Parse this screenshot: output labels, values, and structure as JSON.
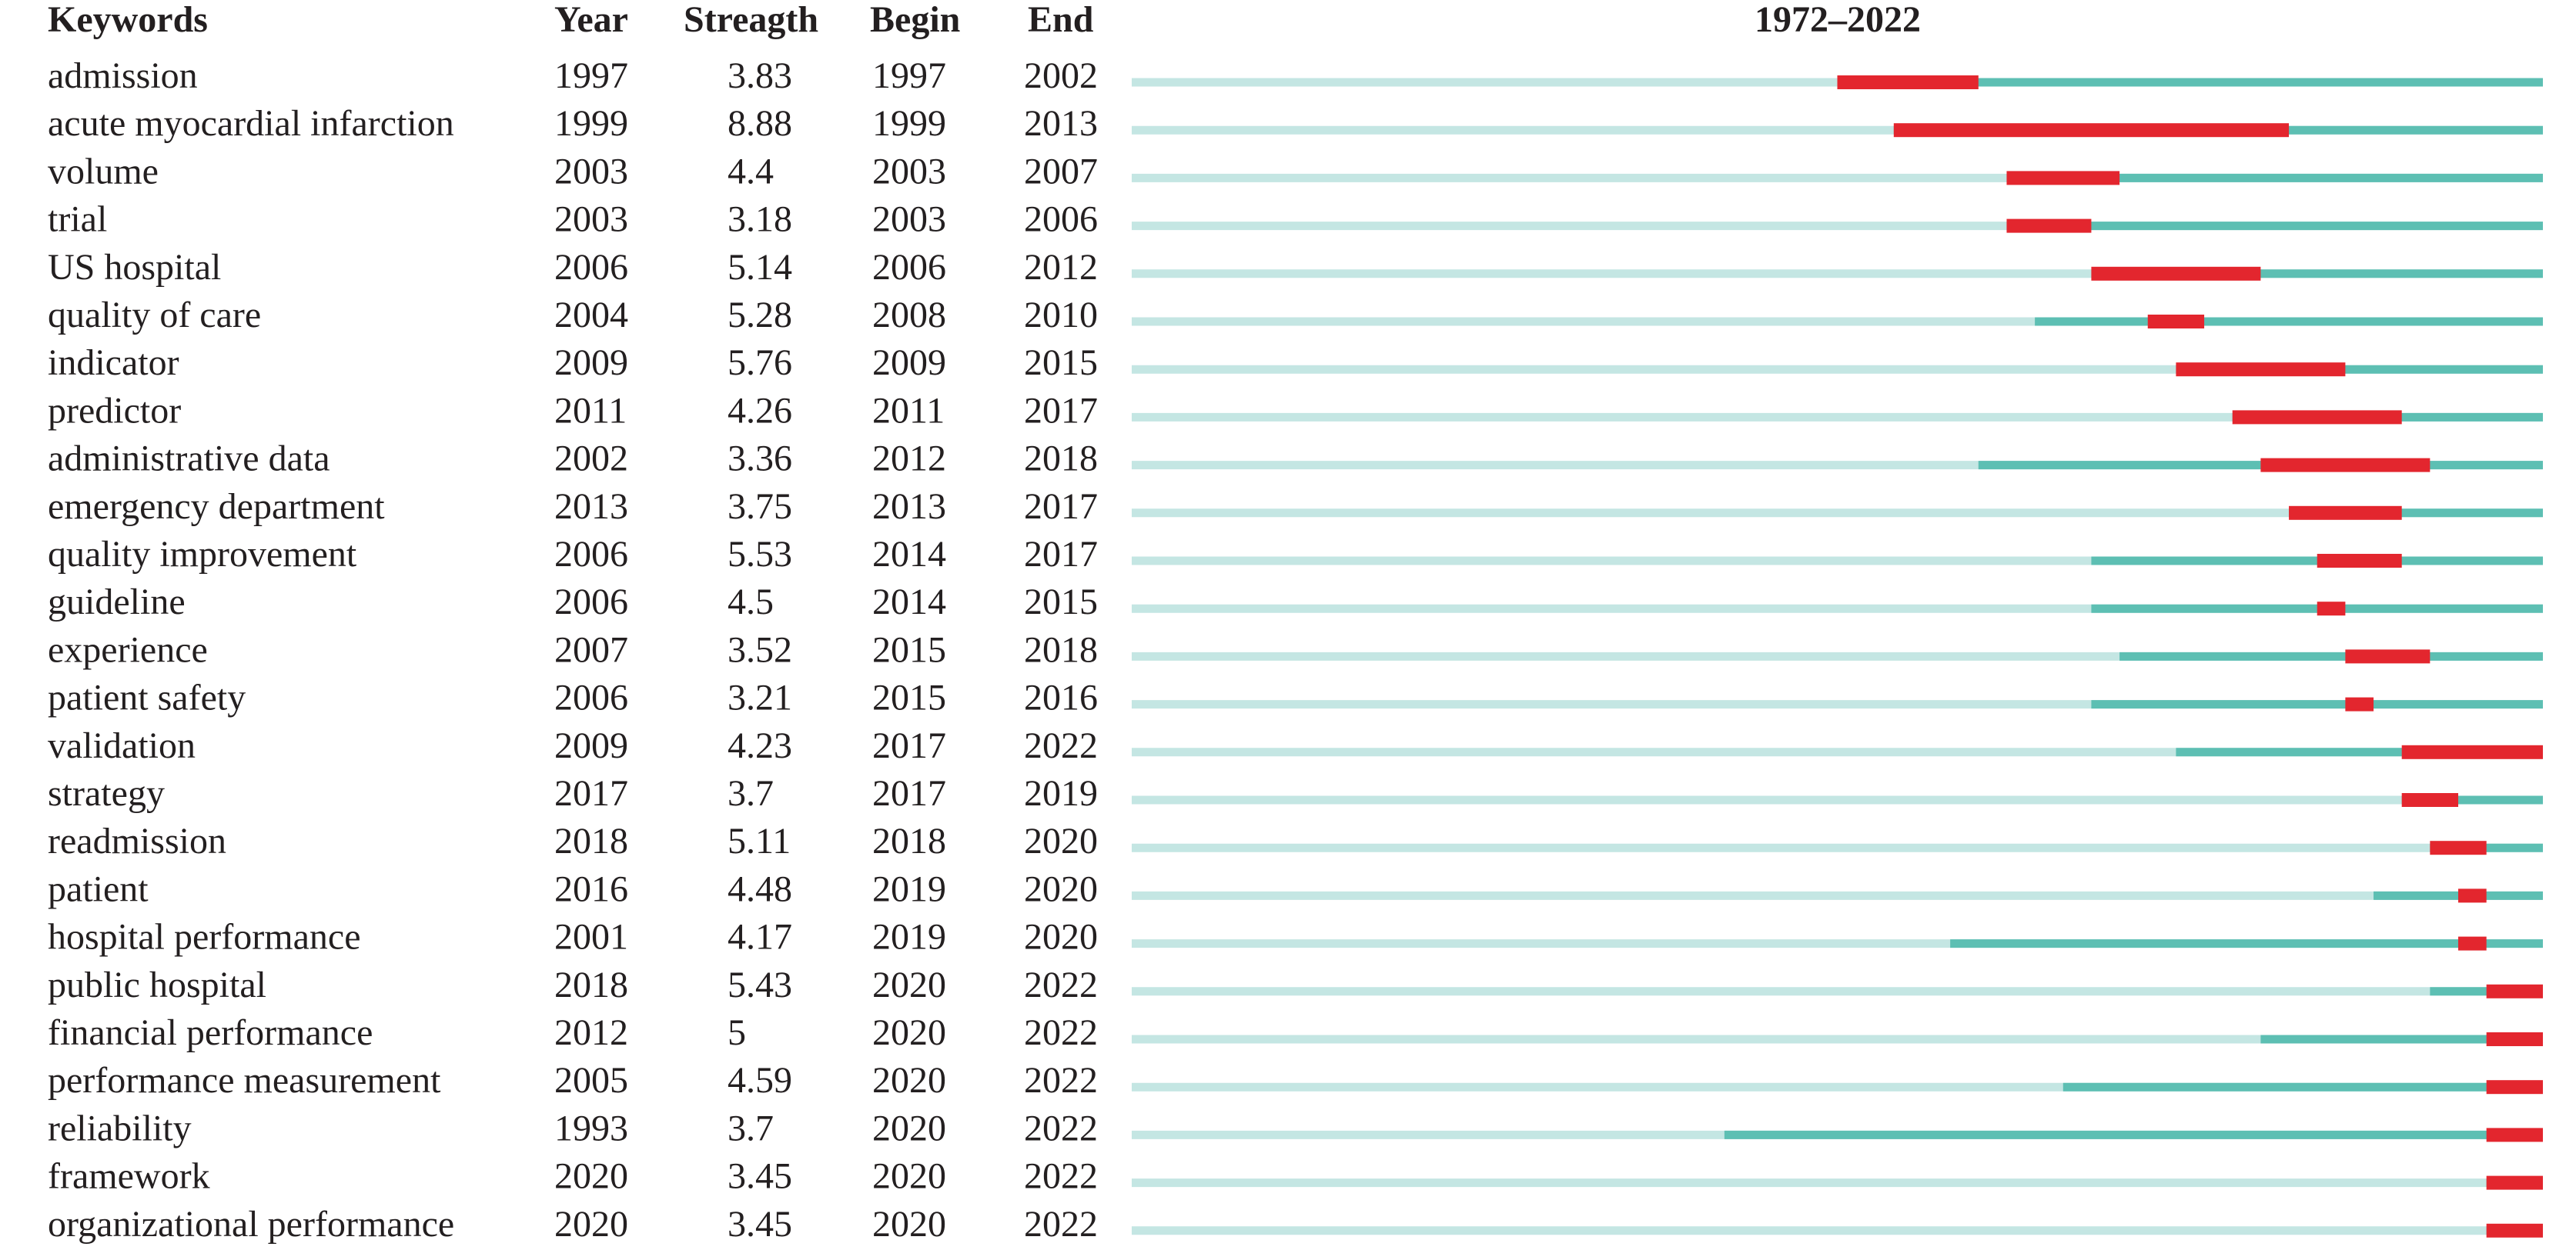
{
  "table": {
    "columns": [
      "Keywords",
      "Year",
      "Streagth",
      "Begin",
      "End"
    ],
    "period_label": "1972–2022",
    "xlim": [
      1972,
      2022
    ],
    "rows": [
      {
        "keyword": "admission",
        "year": 1997,
        "strength": 3.83,
        "begin": 1997,
        "end": 2002
      },
      {
        "keyword": "acute myocardial infarction",
        "year": 1999,
        "strength": 8.88,
        "begin": 1999,
        "end": 2013
      },
      {
        "keyword": "volume",
        "year": 2003,
        "strength": 4.4,
        "begin": 2003,
        "end": 2007
      },
      {
        "keyword": "trial",
        "year": 2003,
        "strength": 3.18,
        "begin": 2003,
        "end": 2006
      },
      {
        "keyword": "US hospital",
        "year": 2006,
        "strength": 5.14,
        "begin": 2006,
        "end": 2012
      },
      {
        "keyword": "quality of care",
        "year": 2004,
        "strength": 5.28,
        "begin": 2008,
        "end": 2010
      },
      {
        "keyword": "indicator",
        "year": 2009,
        "strength": 5.76,
        "begin": 2009,
        "end": 2015
      },
      {
        "keyword": "predictor",
        "year": 2011,
        "strength": 4.26,
        "begin": 2011,
        "end": 2017
      },
      {
        "keyword": "administrative data",
        "year": 2002,
        "strength": 3.36,
        "begin": 2012,
        "end": 2018
      },
      {
        "keyword": "emergency department",
        "year": 2013,
        "strength": 3.75,
        "begin": 2013,
        "end": 2017
      },
      {
        "keyword": "quality improvement",
        "year": 2006,
        "strength": 5.53,
        "begin": 2014,
        "end": 2017
      },
      {
        "keyword": "guideline",
        "year": 2006,
        "strength": 4.5,
        "begin": 2014,
        "end": 2015
      },
      {
        "keyword": "experience",
        "year": 2007,
        "strength": 3.52,
        "begin": 2015,
        "end": 2018
      },
      {
        "keyword": "patient safety",
        "year": 2006,
        "strength": 3.21,
        "begin": 2015,
        "end": 2016
      },
      {
        "keyword": "validation",
        "year": 2009,
        "strength": 4.23,
        "begin": 2017,
        "end": 2022
      },
      {
        "keyword": "strategy",
        "year": 2017,
        "strength": 3.7,
        "begin": 2017,
        "end": 2019
      },
      {
        "keyword": "readmission",
        "year": 2018,
        "strength": 5.11,
        "begin": 2018,
        "end": 2020
      },
      {
        "keyword": "patient",
        "year": 2016,
        "strength": 4.48,
        "begin": 2019,
        "end": 2020
      },
      {
        "keyword": "hospital performance",
        "year": 2001,
        "strength": 4.17,
        "begin": 2019,
        "end": 2020
      },
      {
        "keyword": "public hospital",
        "year": 2018,
        "strength": 5.43,
        "begin": 2020,
        "end": 2022
      },
      {
        "keyword": "financial performance",
        "year": 2012,
        "strength": 5,
        "begin": 2020,
        "end": 2022
      },
      {
        "keyword": "performance measurement",
        "year": 2005,
        "strength": 4.59,
        "begin": 2020,
        "end": 2022
      },
      {
        "keyword": "reliability",
        "year": 1993,
        "strength": 3.7,
        "begin": 2020,
        "end": 2022
      },
      {
        "keyword": "framework",
        "year": 2020,
        "strength": 3.45,
        "begin": 2020,
        "end": 2022
      },
      {
        "keyword": "organizational performance",
        "year": 2020,
        "strength": 3.45,
        "begin": 2020,
        "end": 2022
      }
    ]
  }
}
